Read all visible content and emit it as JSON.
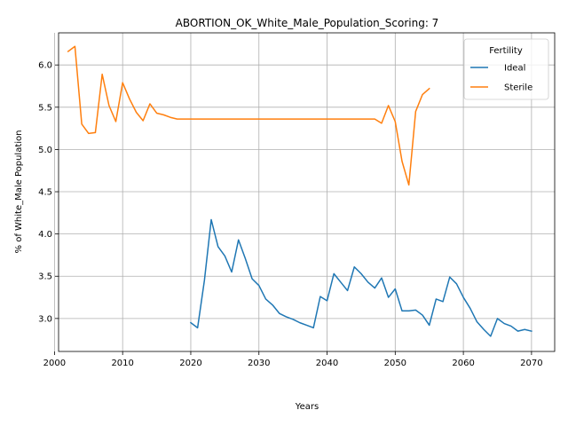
{
  "chart_data": {
    "type": "line",
    "title": "ABORTION_OK_White_Male_Population_Scoring: 7",
    "xlabel": "Years",
    "ylabel": "% of White_Male Population",
    "xlim": [
      2000.6,
      2073.4
    ],
    "ylim": [
      2.61,
      6.38
    ],
    "x_ticks": [
      2000,
      2010,
      2020,
      2030,
      2040,
      2050,
      2060,
      2070
    ],
    "y_ticks": [
      3.0,
      3.5,
      4.0,
      4.5,
      5.0,
      5.5,
      6.0
    ],
    "grid": true,
    "legend": {
      "title": "Fertility",
      "placement": "top-right"
    },
    "series": [
      {
        "name": "Ideal",
        "color": "#1f77b4",
        "x": [
          2020,
          2021,
          2022,
          2023,
          2024,
          2025,
          2026,
          2027,
          2028,
          2029,
          2030,
          2031,
          2032,
          2033,
          2034,
          2035,
          2036,
          2037,
          2038,
          2039,
          2040,
          2041,
          2042,
          2043,
          2044,
          2045,
          2046,
          2047,
          2048,
          2049,
          2050,
          2051,
          2052,
          2053,
          2054,
          2055,
          2056,
          2057,
          2058,
          2059,
          2060,
          2061,
          2062,
          2063,
          2064,
          2065,
          2066,
          2067,
          2068,
          2069,
          2070
        ],
        "y": [
          2.95,
          2.89,
          3.45,
          4.17,
          3.85,
          3.74,
          3.55,
          3.93,
          3.71,
          3.47,
          3.39,
          3.23,
          3.16,
          3.06,
          3.02,
          2.99,
          2.95,
          2.92,
          2.89,
          3.26,
          3.21,
          3.53,
          3.43,
          3.33,
          3.61,
          3.53,
          3.43,
          3.36,
          3.48,
          3.25,
          3.35,
          3.09,
          3.09,
          3.1,
          3.04,
          2.92,
          3.23,
          3.2,
          3.49,
          3.41,
          3.25,
          3.12,
          2.96,
          2.87,
          2.79,
          3.0,
          2.94,
          2.91,
          2.85,
          2.87,
          2.85
        ]
      },
      {
        "name": "Sterile",
        "color": "#ff7f0e",
        "x": [
          2002,
          2003,
          2004,
          2005,
          2006,
          2007,
          2008,
          2009,
          2010,
          2011,
          2012,
          2013,
          2014,
          2015,
          2016,
          2017,
          2018,
          2019,
          2020,
          2021,
          2022,
          2023,
          2024,
          2025,
          2026,
          2027,
          2028,
          2029,
          2030,
          2031,
          2032,
          2033,
          2034,
          2035,
          2036,
          2037,
          2038,
          2039,
          2040,
          2041,
          2042,
          2043,
          2044,
          2045,
          2046,
          2047,
          2048,
          2049,
          2050,
          2051,
          2052,
          2053,
          2054,
          2055
        ],
        "y": [
          6.16,
          6.22,
          5.3,
          5.19,
          5.2,
          5.89,
          5.52,
          5.33,
          5.79,
          5.6,
          5.44,
          5.34,
          5.54,
          5.43,
          5.41,
          5.38,
          5.36,
          5.36,
          5.36,
          5.36,
          5.36,
          5.36,
          5.36,
          5.36,
          5.36,
          5.36,
          5.36,
          5.36,
          5.36,
          5.36,
          5.36,
          5.36,
          5.36,
          5.36,
          5.36,
          5.36,
          5.36,
          5.36,
          5.36,
          5.36,
          5.36,
          5.36,
          5.36,
          5.36,
          5.36,
          5.36,
          5.31,
          5.52,
          5.33,
          4.86,
          4.58,
          5.45,
          5.65,
          5.72
        ]
      }
    ]
  }
}
